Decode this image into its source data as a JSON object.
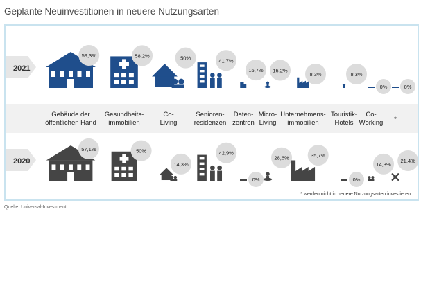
{
  "header": {
    "title": "Geplante Neuinvestitionen in neuere Nutzungsarten"
  },
  "colors": {
    "row2021": "#1f4e8c",
    "row2020": "#454545",
    "bubble": "#dcdcdc",
    "frame": "#c9e3ef",
    "band": "#f1f1f1",
    "arrow": "#e6e6e6"
  },
  "chart_data": {
    "type": "bubble-icon-comparison",
    "unit": "%",
    "categories": [
      {
        "label": "Gebäude der\nöffentlichen Hand",
        "icon": "government-building-icon"
      },
      {
        "label": "Gesundheits-\nimmobilien",
        "icon": "hospital-icon"
      },
      {
        "label": "Co-\nLiving",
        "icon": "house-with-people-icon"
      },
      {
        "label": "Senioren-\nresidenzen",
        "icon": "senior-residence-icon"
      },
      {
        "label": "Daten-\nzentren",
        "icon": "data-center-icon"
      },
      {
        "label": "Micro-\nLiving",
        "icon": "micro-living-person-icon"
      },
      {
        "label": "Unternehmens-\nimmobilien",
        "icon": "factory-icon"
      },
      {
        "label": "Touristik-\nHotels",
        "icon": "hotel-icon"
      },
      {
        "label": "Co-\nWorking",
        "icon": "coworking-icon"
      },
      {
        "label": "*",
        "icon": "cross-icon"
      }
    ],
    "series": [
      {
        "name": "2021",
        "labels": [
          "59,3%",
          "58,2%",
          "50%",
          "41,7%",
          "16,7%",
          "16,2%",
          "8,3%",
          "8,3%",
          "0%",
          "0%"
        ],
        "values": [
          59.3,
          58.2,
          50,
          41.7,
          16.7,
          16.2,
          8.3,
          8.3,
          0,
          0
        ]
      },
      {
        "name": "2020",
        "labels": [
          "57,1%",
          "50%",
          "14,3%",
          "42,9%",
          "0%",
          "28,6%",
          "35,7%",
          "0%",
          "14,3%",
          "21,4%"
        ],
        "values": [
          57.1,
          50,
          14.3,
          42.9,
          0,
          28.6,
          35.7,
          0,
          14.3,
          21.4
        ]
      }
    ],
    "footnote": "* werden nicht in neuere Nutzungsarten investieren"
  },
  "source": "Quelle: Universal-Investment"
}
